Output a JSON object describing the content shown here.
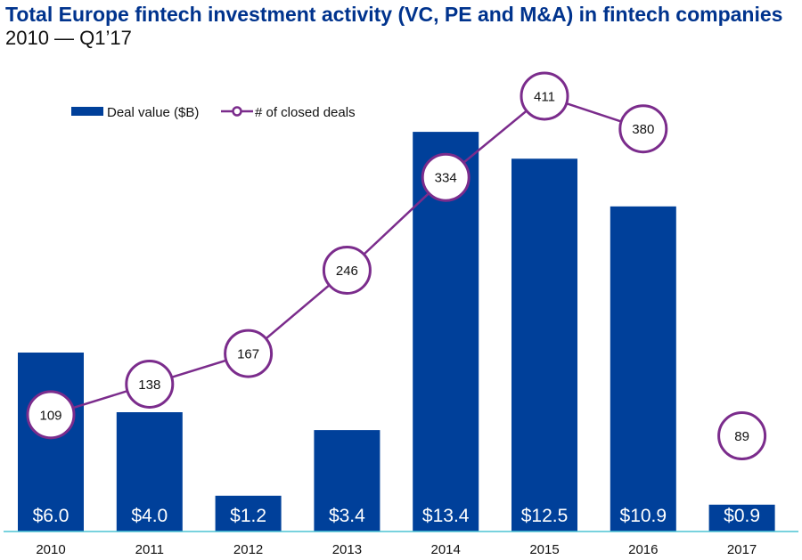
{
  "chart_data": {
    "type": "bar",
    "title": "Total Europe fintech investment activity (VC, PE and M&A) in fintech companies",
    "subtitle": "2010 — Q1’17",
    "categories": [
      "2010",
      "2011",
      "2012",
      "2013",
      "2014",
      "2015",
      "2016",
      "2017"
    ],
    "series": [
      {
        "name": "Deal value ($B)",
        "type": "bar",
        "values": [
          6.0,
          4.0,
          1.2,
          3.4,
          13.4,
          12.5,
          10.9,
          0.9
        ],
        "labels": [
          "$6.0",
          "$4.0",
          "$1.2",
          "$3.4",
          "$13.4",
          "$12.5",
          "$10.9",
          "$0.9"
        ],
        "color": "#00409a"
      },
      {
        "name": "# of closed deals",
        "type": "line",
        "values": [
          109,
          138,
          167,
          246,
          334,
          411,
          380,
          89
        ],
        "labels": [
          "109",
          "138",
          "167",
          "246",
          "334",
          "411",
          "380",
          "89"
        ],
        "color": "#7b2c8c",
        "connected_through": "2016"
      }
    ],
    "legend": "top-left",
    "grid": false,
    "axis_color": "#4bc3d4"
  }
}
